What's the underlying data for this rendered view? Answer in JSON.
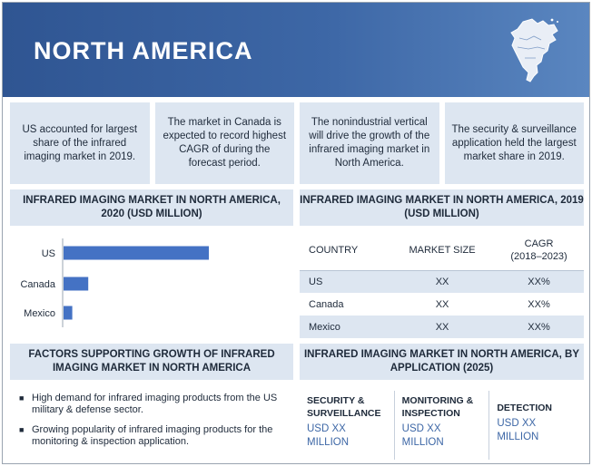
{
  "banner": {
    "title": "NORTH AMERICA"
  },
  "facts": [
    "US accounted for largest share  of the infrared imaging market in 2019.",
    "The market in Canada is expected to record highest CAGR of during the forecast period.",
    "The nonindustrial vertical will drive the growth of the infrared imaging market in North America.",
    "The security & surveillance application held the largest market share in 2019."
  ],
  "bar_section": {
    "title": "INFRARED IMAGING MARKET IN NORTH AMERICA, 2020 (USD MILLION)"
  },
  "chart_data": {
    "type": "bar",
    "orientation": "horizontal",
    "categories": [
      "US",
      "Canada",
      "Mexico"
    ],
    "values": [
      100,
      17,
      6
    ],
    "title": "INFRARED IMAGING MARKET IN NORTH AMERICA, 2020 (USD MILLION)",
    "xlabel": "",
    "ylabel": "",
    "grid": false,
    "bar_color": "#4472c4"
  },
  "table_section": {
    "title": "INFRARED IMAGING MARKET IN NORTH AMERICA, 2019 (USD MILLION)",
    "headers": [
      "COUNTRY",
      "MARKET SIZE",
      "CAGR",
      "(2018–2023)"
    ],
    "rows": [
      [
        "US",
        "XX",
        "XX%"
      ],
      [
        "Canada",
        "XX",
        "XX%"
      ],
      [
        "Mexico",
        "XX",
        "XX%"
      ]
    ]
  },
  "factors_section": {
    "title": "FACTORS SUPPORTING GROWTH OF INFRARED IMAGING MARKET IN NORTH AMERICA",
    "bullet_symbol": "■",
    "bullets": [
      "High demand for infrared imaging products from the US military & defense sector.",
      "Growing popularity of infrared imaging products for the monitoring & inspection application."
    ]
  },
  "application_section": {
    "title": "INFRARED IMAGING MARKET IN NORTH AMERICA, BY APPLICATION (2025)",
    "apps": [
      {
        "name": "SECURITY & SURVEILLANCE",
        "value": "USD XX MILLION"
      },
      {
        "name": "MONITORING & INSPECTION",
        "value": "USD XX MILLION"
      },
      {
        "name": "DETECTION",
        "value": "USD XX MILLION"
      }
    ]
  },
  "colors": {
    "banner": "#2f5592",
    "panel": "#dde6f1",
    "accent": "#3d67a6"
  }
}
